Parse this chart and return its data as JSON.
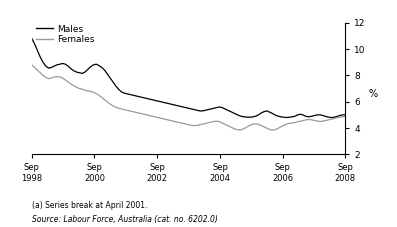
{
  "ylabel": "%",
  "ylim": [
    2,
    12
  ],
  "yticks": [
    2,
    4,
    6,
    8,
    10,
    12
  ],
  "xtick_labels": [
    "Sep\n1998",
    "Sep\n2000",
    "Sep\n2002",
    "Sep\n2004",
    "Sep\n2006",
    "Sep\n2008"
  ],
  "footnote1": "(a) Series break at April 2001.",
  "footnote2": "Source: Labour Force, Australia (cat. no. 6202.0)",
  "legend_males": "Males",
  "legend_females": "Females",
  "line_color_males": "#000000",
  "line_color_females": "#999999",
  "males": [
    10.8,
    10.4,
    9.9,
    9.4,
    9.0,
    8.7,
    8.55,
    8.6,
    8.7,
    8.8,
    8.85,
    8.9,
    8.85,
    8.7,
    8.5,
    8.35,
    8.25,
    8.2,
    8.15,
    8.25,
    8.45,
    8.65,
    8.8,
    8.85,
    8.75,
    8.6,
    8.4,
    8.1,
    7.8,
    7.5,
    7.2,
    6.95,
    6.75,
    6.65,
    6.6,
    6.55,
    6.5,
    6.45,
    6.4,
    6.35,
    6.3,
    6.25,
    6.2,
    6.15,
    6.1,
    6.05,
    6.0,
    5.95,
    5.9,
    5.85,
    5.8,
    5.75,
    5.7,
    5.65,
    5.6,
    5.55,
    5.5,
    5.45,
    5.4,
    5.35,
    5.3,
    5.3,
    5.35,
    5.4,
    5.45,
    5.5,
    5.55,
    5.6,
    5.55,
    5.45,
    5.35,
    5.25,
    5.15,
    5.05,
    4.95,
    4.88,
    4.85,
    4.82,
    4.82,
    4.85,
    4.9,
    5.0,
    5.15,
    5.25,
    5.3,
    5.2,
    5.1,
    4.98,
    4.9,
    4.85,
    4.82,
    4.8,
    4.82,
    4.85,
    4.9,
    5.0,
    5.05,
    4.98,
    4.88,
    4.85,
    4.9,
    4.95,
    5.0,
    5.0,
    4.95,
    4.88,
    4.82,
    4.8,
    4.82,
    4.88,
    4.95,
    5.0,
    5.0
  ],
  "females": [
    8.8,
    8.6,
    8.4,
    8.2,
    8.0,
    7.85,
    7.75,
    7.8,
    7.88,
    7.9,
    7.88,
    7.8,
    7.65,
    7.5,
    7.35,
    7.2,
    7.1,
    7.0,
    6.95,
    6.88,
    6.82,
    6.78,
    6.72,
    6.62,
    6.48,
    6.32,
    6.15,
    5.98,
    5.82,
    5.68,
    5.58,
    5.5,
    5.45,
    5.4,
    5.35,
    5.3,
    5.25,
    5.2,
    5.15,
    5.1,
    5.05,
    5.0,
    4.95,
    4.9,
    4.85,
    4.8,
    4.75,
    4.7,
    4.65,
    4.6,
    4.55,
    4.5,
    4.45,
    4.4,
    4.35,
    4.3,
    4.25,
    4.2,
    4.18,
    4.2,
    4.25,
    4.3,
    4.35,
    4.4,
    4.45,
    4.5,
    4.52,
    4.48,
    4.38,
    4.28,
    4.18,
    4.08,
    3.98,
    3.9,
    3.85,
    3.88,
    3.98,
    4.1,
    4.22,
    4.3,
    4.32,
    4.28,
    4.18,
    4.08,
    3.98,
    3.88,
    3.85,
    3.88,
    3.98,
    4.1,
    4.2,
    4.3,
    4.35,
    4.38,
    4.42,
    4.48,
    4.52,
    4.58,
    4.62,
    4.65,
    4.62,
    4.58,
    4.52,
    4.5,
    4.52,
    4.58,
    4.62,
    4.68,
    4.72,
    4.78,
    4.82,
    4.85,
    4.88
  ]
}
